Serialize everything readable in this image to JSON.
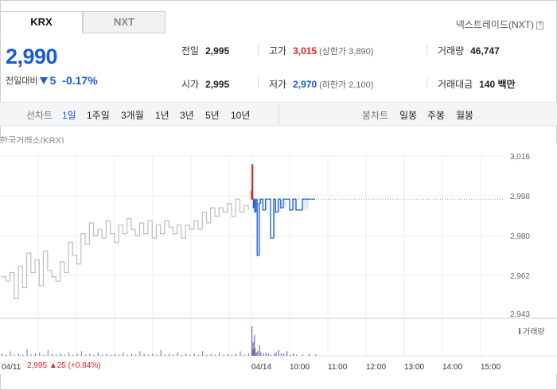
{
  "tabs": [
    {
      "label": "KRX",
      "active": true
    },
    {
      "label": "NXT",
      "active": false
    }
  ],
  "nxt_link": {
    "label": "넥스트레이드(NXT)",
    "help": "?"
  },
  "price": {
    "current": "2,990",
    "change_label": "전일대비",
    "change": "5",
    "change_pct": "-0.17%",
    "direction": "down"
  },
  "stats": {
    "prev_close": {
      "label": "전일",
      "value": "2,995"
    },
    "open": {
      "label": "시가",
      "value": "2,995"
    },
    "high": {
      "label": "고가",
      "value": "3,015",
      "sub": "(상한가 3,890)"
    },
    "low": {
      "label": "저가",
      "value": "2,970",
      "sub": "(하한가 2,100)"
    },
    "volume": {
      "label": "거래량",
      "value": "46,747"
    },
    "amount": {
      "label": "거래대금",
      "value": "140 백만"
    }
  },
  "period_bar": {
    "line_label": "선차트",
    "line_options": [
      "1일",
      "1주일",
      "3개월",
      "1년",
      "3년",
      "5년",
      "10년"
    ],
    "active": "1일",
    "candle_label": "봉차트",
    "candle_options": [
      "일봉",
      "주봉",
      "월봉"
    ]
  },
  "exchange_label": "한국거래소(KRX)",
  "colors": {
    "up": "#e32222",
    "down": "#1a5bd6",
    "prev_line": "#bdbdbd",
    "volume": "#7a6aa8"
  },
  "chart_data": {
    "type": "line",
    "y_ticks": [
      "3,016",
      "2,998",
      "2,980",
      "2,962",
      "2,943"
    ],
    "ylim": [
      2943,
      3016
    ],
    "reference_price": 2996,
    "x_labels": [
      "04/11",
      "04/14",
      "10:00",
      "11:00",
      "12:00",
      "13:00",
      "14:00",
      "15:00"
    ],
    "volume_legend": "거래량",
    "prev_day_series": [
      2960,
      2958,
      2962,
      2950,
      2965,
      2955,
      2971,
      2962,
      2968,
      2956,
      2972,
      2963,
      2960,
      2958,
      2967,
      2962,
      2976,
      2970,
      2966,
      2980,
      2975,
      2985,
      2979,
      2982,
      2978,
      2986,
      2980,
      2976,
      2984,
      2980,
      2987,
      2982,
      2979,
      2985,
      2980,
      2986,
      2978,
      2984,
      2980,
      2986,
      2983,
      2980,
      2984,
      2978,
      2984,
      2982,
      2986,
      2982,
      2990,
      2985,
      2992,
      2988,
      2992,
      2990,
      2994,
      2988,
      2996,
      2990,
      2993,
      2991
    ],
    "today_series": [
      {
        "time": "09:00",
        "price": 3000,
        "color": "up"
      },
      {
        "time": "09:01",
        "price": 2996,
        "color": "up"
      },
      {
        "time": "09:02",
        "price": 3012,
        "color": "up"
      },
      {
        "time": "09:03",
        "price": 2996,
        "color": "up"
      },
      {
        "time": "09:04",
        "price": 2992,
        "color": "down"
      },
      {
        "time": "09:05",
        "price": 2996,
        "color": "down"
      },
      {
        "time": "09:07",
        "price": 2990,
        "color": "down"
      },
      {
        "time": "09:09",
        "price": 2996,
        "color": "down"
      },
      {
        "time": "09:12",
        "price": 2970,
        "color": "down"
      },
      {
        "time": "09:14",
        "price": 2994,
        "color": "down"
      },
      {
        "time": "09:18",
        "price": 2996,
        "color": "down"
      },
      {
        "time": "09:22",
        "price": 2991,
        "color": "down"
      },
      {
        "time": "09:26",
        "price": 2996,
        "color": "down"
      },
      {
        "time": "09:30",
        "price": 2996,
        "color": "down"
      },
      {
        "time": "09:35",
        "price": 2978,
        "color": "down"
      },
      {
        "time": "09:38",
        "price": 2996,
        "color": "down"
      },
      {
        "time": "09:42",
        "price": 2990,
        "color": "down"
      },
      {
        "time": "09:46",
        "price": 2996,
        "color": "down"
      },
      {
        "time": "09:50",
        "price": 2992,
        "color": "down"
      },
      {
        "time": "09:55",
        "price": 2996,
        "color": "down"
      },
      {
        "time": "10:00",
        "price": 2996,
        "color": "down"
      },
      {
        "time": "10:05",
        "price": 2991,
        "color": "down"
      },
      {
        "time": "10:10",
        "price": 2996,
        "color": "down"
      },
      {
        "time": "10:20",
        "price": 2991,
        "color": "down"
      },
      {
        "time": "10:30",
        "price": 2996,
        "color": "down"
      },
      {
        "time": "10:40",
        "price": 2996,
        "color": "down"
      }
    ],
    "prev_volume": [
      2,
      1,
      4,
      1,
      2,
      1,
      6,
      1,
      2,
      3,
      1,
      5,
      2,
      1,
      2,
      1,
      3,
      1,
      2,
      4,
      1,
      2,
      1,
      3,
      1,
      2,
      1,
      2,
      1,
      3,
      1,
      2,
      1,
      4,
      2,
      1,
      2,
      1,
      5,
      1,
      2,
      1,
      3,
      1,
      2,
      1,
      2,
      1,
      4,
      1,
      2,
      1,
      3,
      1,
      2,
      1,
      2,
      4,
      1,
      2
    ],
    "today_volume": [
      26,
      6,
      12,
      5,
      18,
      7,
      3,
      4,
      9,
      3,
      2,
      3,
      2,
      1,
      2,
      3,
      5,
      2,
      2,
      4,
      1,
      2,
      1,
      1,
      2,
      1
    ]
  },
  "prev_info": {
    "price": "2,995",
    "change": "▲25",
    "pct": "(+0.84%)"
  }
}
